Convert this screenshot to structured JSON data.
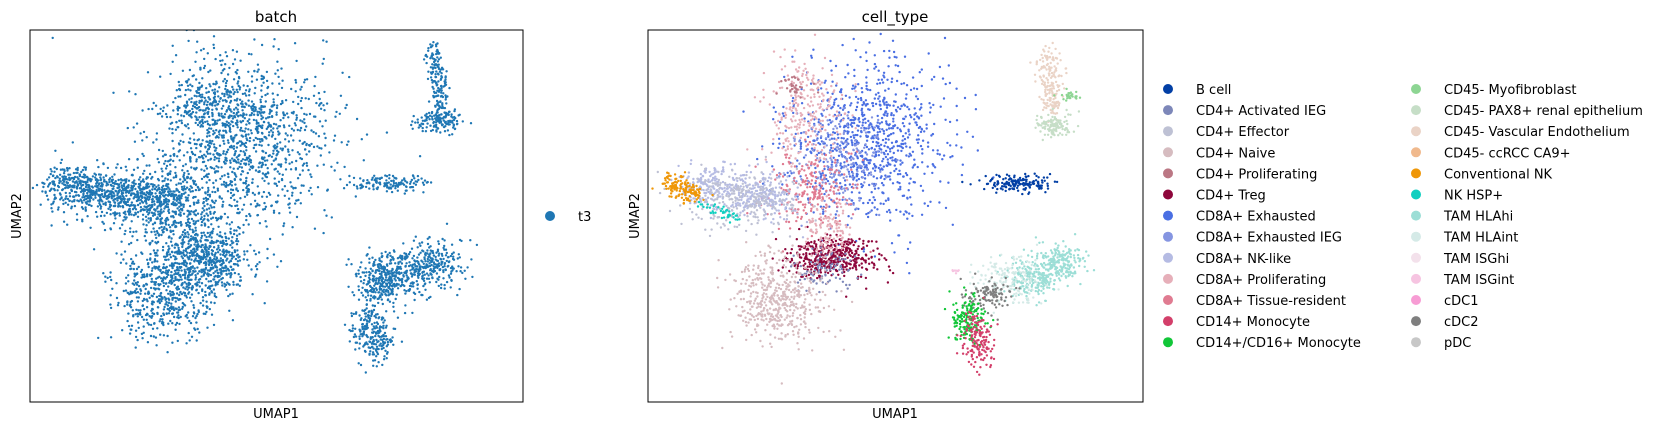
{
  "chart_data": [
    {
      "type": "scatter",
      "title": "batch",
      "xlabel": "UMAP1",
      "ylabel": "UMAP2",
      "grid": false,
      "axis_ticks": false,
      "legend_position": "right",
      "legend": [
        {
          "label": "t3",
          "color": "#1f77b4"
        }
      ]
    },
    {
      "type": "scatter",
      "title": "cell_type",
      "xlabel": "UMAP1",
      "ylabel": "UMAP2",
      "grid": false,
      "axis_ticks": false,
      "legend_position": "right",
      "legend_columns": 2,
      "legend": [
        {
          "label": "B cell",
          "color": "#023fa5"
        },
        {
          "label": "CD4+ Activated IEG",
          "color": "#7d87b9"
        },
        {
          "label": "CD4+ Effector",
          "color": "#bec1d4"
        },
        {
          "label": "CD4+ Naive",
          "color": "#d6bcc0"
        },
        {
          "label": "CD4+ Proliferating",
          "color": "#bb7784"
        },
        {
          "label": "CD4+ Treg",
          "color": "#8e063b"
        },
        {
          "label": "CD8A+ Exhausted",
          "color": "#4a6fe3"
        },
        {
          "label": "CD8A+ Exhausted IEG",
          "color": "#8595e1"
        },
        {
          "label": "CD8A+ NK-like",
          "color": "#b5bbe3"
        },
        {
          "label": "CD8A+ Proliferating",
          "color": "#e6afb9"
        },
        {
          "label": "CD8A+ Tissue-resident",
          "color": "#e07b91"
        },
        {
          "label": "CD14+ Monocyte",
          "color": "#d33f6a"
        },
        {
          "label": "CD14+/CD16+ Monocyte",
          "color": "#11c638"
        },
        {
          "label": "CD45- Myofibroblast",
          "color": "#8dd593"
        },
        {
          "label": "CD45- PAX8+ renal epithelium",
          "color": "#c6dec7"
        },
        {
          "label": "CD45- Vascular Endothelium",
          "color": "#ead3c6"
        },
        {
          "label": "CD45- ccRCC CA9+",
          "color": "#f0b98d"
        },
        {
          "label": "Conventional NK",
          "color": "#ef9708"
        },
        {
          "label": "NK HSP+",
          "color": "#0fcfc0"
        },
        {
          "label": "TAM HLAhi",
          "color": "#9cded6"
        },
        {
          "label": "TAM HLAint",
          "color": "#d5eae7"
        },
        {
          "label": "TAM ISGhi",
          "color": "#f3e1eb"
        },
        {
          "label": "TAM ISGint",
          "color": "#f6c4e1"
        },
        {
          "label": "cDC1",
          "color": "#f79cd4"
        },
        {
          "label": "cDC2",
          "color": "#7f7f7f"
        },
        {
          "label": "pDC",
          "color": "#c7c7c7"
        }
      ]
    }
  ]
}
